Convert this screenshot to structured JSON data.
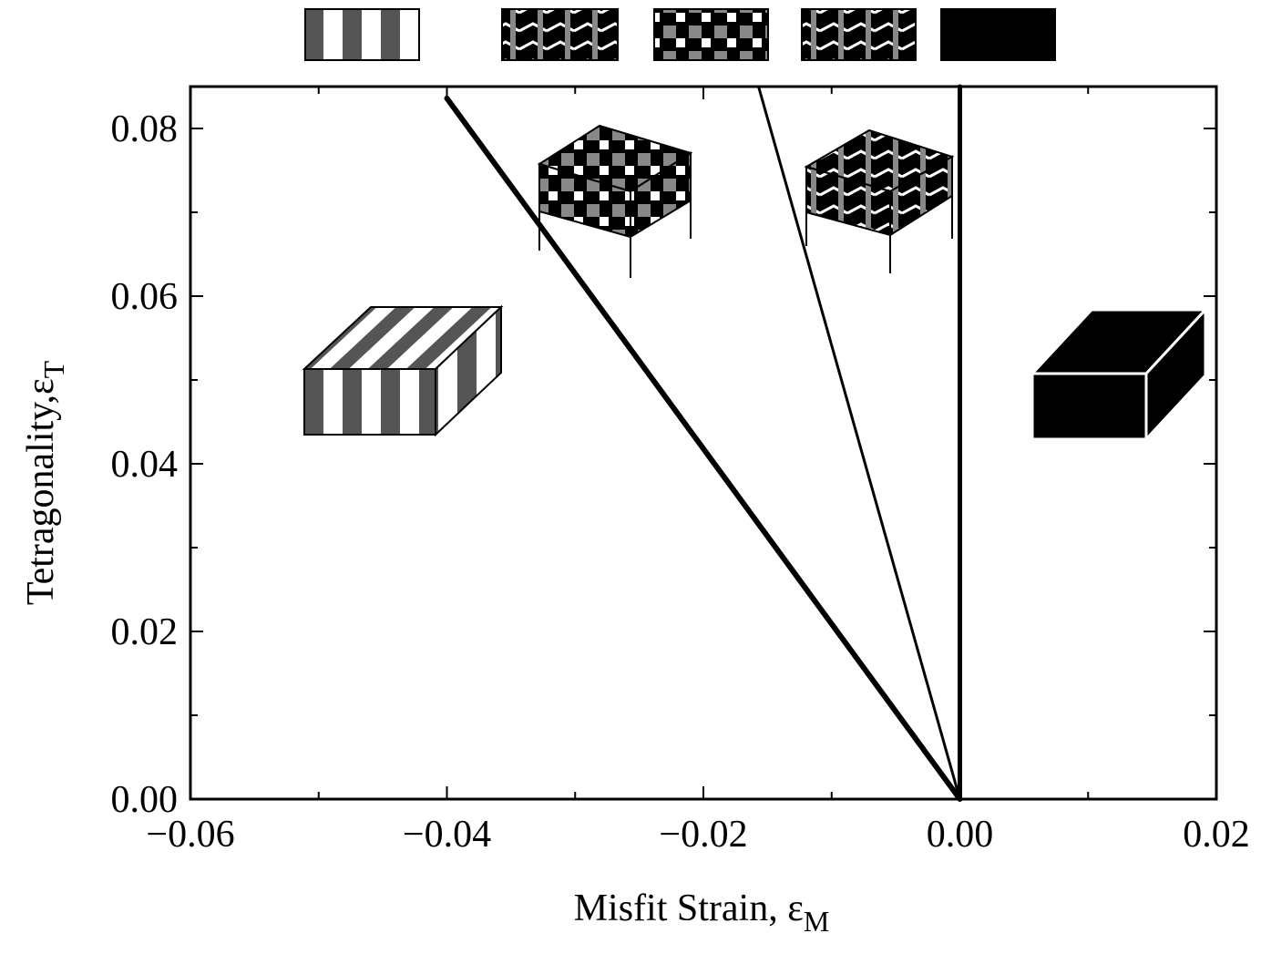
{
  "chart_data": {
    "type": "line",
    "x_label": {
      "text": "Misfit Strain, ε",
      "subscript": "M"
    },
    "y_label": {
      "text": "Tetragonality,ε",
      "subscript": "T"
    },
    "xlim": [
      -0.06,
      0.02
    ],
    "ylim": [
      0,
      0.085
    ],
    "xticks": [
      {
        "value": -0.06,
        "label": "−0.06"
      },
      {
        "value": -0.04,
        "label": "−0.04"
      },
      {
        "value": -0.02,
        "label": "−0.02"
      },
      {
        "value": 0,
        "label": "0.00"
      },
      {
        "value": 0.02,
        "label": "0.02"
      }
    ],
    "yticks": [
      {
        "value": 0,
        "label": "0.00"
      },
      0.02,
      0.04,
      0.06,
      0.08
    ],
    "series": [
      {
        "color": "#000000",
        "width": 6,
        "x": [
          0,
          -0.04
        ],
        "values": [
          0,
          0.0836
        ]
      },
      {
        "color": "#000000",
        "width": 3,
        "x": [
          0,
          -0.0157
        ],
        "values": [
          0,
          0.085
        ]
      },
      {
        "color": "#000000",
        "width": 5,
        "x": [
          0,
          0
        ],
        "values": [
          0,
          0.085
        ]
      }
    ]
  }
}
